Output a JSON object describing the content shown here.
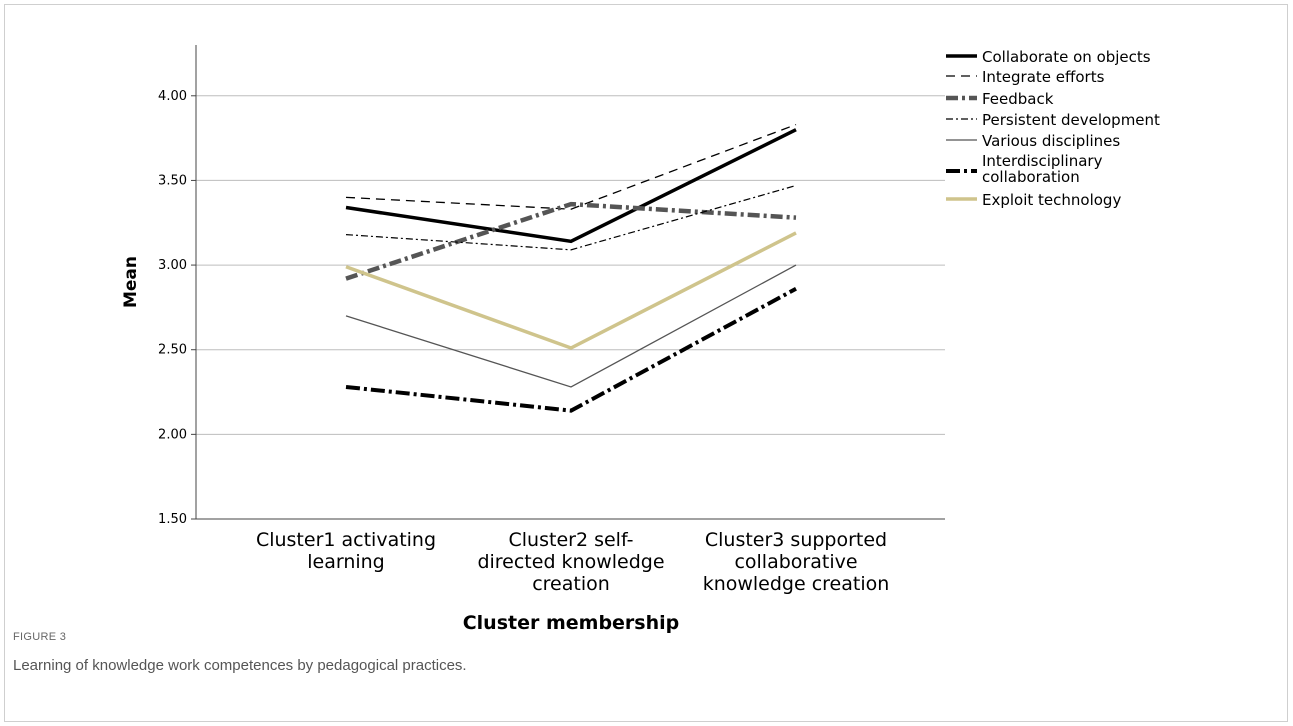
{
  "chart_data": {
    "type": "line",
    "categories": [
      [
        "Cluster1 activating",
        "learning"
      ],
      [
        "Cluster2 self-",
        "directed knowledge",
        "creation"
      ],
      [
        "Cluster3 supported",
        "collaborative",
        "knowledge creation"
      ]
    ],
    "xlabel": "Cluster membership",
    "ylabel": "Mean",
    "ylim": [
      1.5,
      4.3
    ],
    "yticks": [
      "1.50",
      "2.00",
      "2.50",
      "3.00",
      "3.50",
      "4.00"
    ],
    "grid": true,
    "legend_position": "top-right",
    "series": [
      {
        "name": "Collaborate on objects",
        "values": [
          3.34,
          3.14,
          3.8
        ],
        "color": "#000000",
        "style": "solid-thick"
      },
      {
        "name": "Integrate efforts",
        "values": [
          3.4,
          3.33,
          3.83
        ],
        "color": "#000000",
        "style": "dashed"
      },
      {
        "name": "Feedback",
        "values": [
          2.92,
          3.36,
          3.28
        ],
        "color": "#555555",
        "style": "dashdot-thick"
      },
      {
        "name": "Persistent development",
        "values": [
          3.18,
          3.09,
          3.47
        ],
        "color": "#000000",
        "style": "dashdot-thin"
      },
      {
        "name": "Various disciplines",
        "values": [
          2.7,
          2.28,
          3.0
        ],
        "color": "#555555",
        "style": "solid-thin"
      },
      {
        "name": "Interdisciplinary collaboration",
        "legend_lines": [
          "Interdisciplinary",
          "collaboration"
        ],
        "values": [
          2.28,
          2.14,
          2.86
        ],
        "color": "#000000",
        "style": "dashdot-heavy"
      },
      {
        "name": "Exploit technology",
        "values": [
          2.99,
          2.51,
          3.19
        ],
        "color": "#cfc48c",
        "style": "solid-thick"
      }
    ]
  },
  "caption": {
    "label": "FIGURE 3",
    "text": "Learning of knowledge work competences by pedagogical practices."
  }
}
